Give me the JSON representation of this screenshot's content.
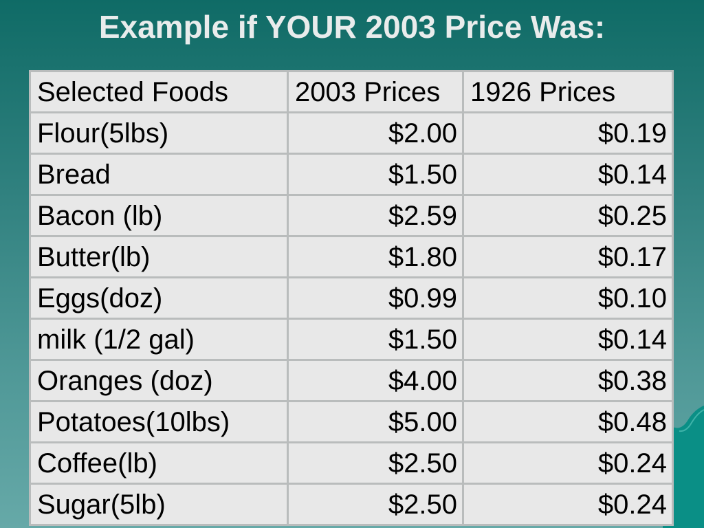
{
  "title": "Example if YOUR 2003 Price Was:",
  "table": {
    "headers": [
      "Selected Foods",
      "2003 Prices",
      "1926 Prices"
    ],
    "rows": [
      [
        "Flour(5lbs)",
        "$2.00",
        "$0.19"
      ],
      [
        "Bread",
        "$1.50",
        "$0.14"
      ],
      [
        "Bacon (lb)",
        "$2.59",
        "$0.25"
      ],
      [
        "Butter(lb)",
        "$1.80",
        "$0.17"
      ],
      [
        "Eggs(doz)",
        "$0.99",
        "$0.10"
      ],
      [
        "milk (1/2 gal)",
        "$1.50",
        "$0.14"
      ],
      [
        "Oranges (doz)",
        "$4.00",
        "$0.38"
      ],
      [
        "Potatoes(10lbs)",
        "$5.00",
        "$0.48"
      ],
      [
        "Coffee(lb)",
        "$2.50",
        "$0.24"
      ],
      [
        "Sugar(5lb)",
        "$2.50",
        "$0.24"
      ]
    ]
  },
  "colors": {
    "background_top": "#0f6b66",
    "background_bottom": "#66a9a8",
    "title_text": "#e9ecec",
    "cell_background": "#e8e8e8",
    "grid_lines": "#b9bcbc",
    "decoration": "#0a8f86"
  }
}
